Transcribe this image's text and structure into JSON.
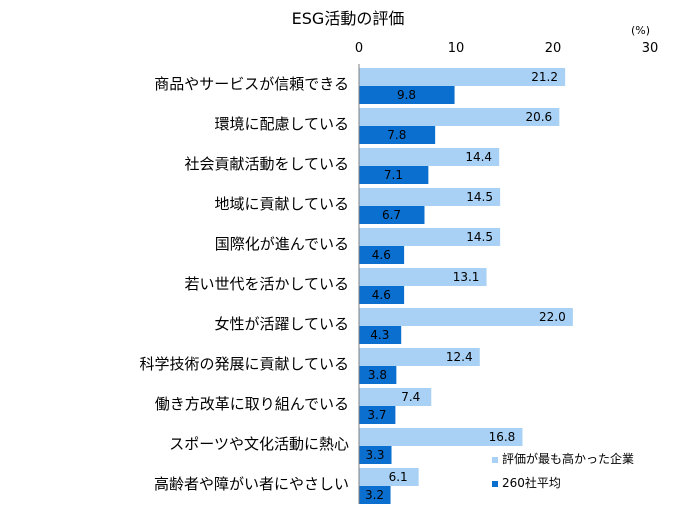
{
  "chart_data": {
    "type": "bar",
    "orientation": "horizontal",
    "title": "ESG活動の評価",
    "unit": "(%)",
    "xlim": [
      0,
      30
    ],
    "ticks": [
      "0",
      "10",
      "20",
      "30"
    ],
    "grid": false,
    "legend_position": "bottom-right",
    "categories": [
      "商品やサービスが信頼できる",
      "環境に配慮している",
      "社会貢献活動をしている",
      "地域に貢献している",
      "国際化が進んでいる",
      "若い世代を活かしている",
      "女性が活躍している",
      "科学技術の発展に貢献している",
      "働き方改革に取り組んでいる",
      "スポーツや文化活動に熱心",
      "高齢者や障がい者にやさしい"
    ],
    "series": [
      {
        "name": "評価が最も高かった企業",
        "color": "#a9d1f5",
        "values": [
          21.2,
          20.6,
          14.4,
          14.5,
          14.5,
          13.1,
          22.0,
          12.4,
          7.4,
          16.8,
          6.1
        ],
        "labels": [
          "21.2",
          "20.6",
          "14.4",
          "14.5",
          "14.5",
          "13.1",
          "22.0",
          "12.4",
          "7.4",
          "16.8",
          "6.1"
        ]
      },
      {
        "name": "260社平均",
        "color": "#0b6fd0",
        "values": [
          9.8,
          7.8,
          7.1,
          6.7,
          4.6,
          4.6,
          4.3,
          3.8,
          3.7,
          3.3,
          3.2
        ],
        "labels": [
          "9.8",
          "7.8",
          "7.1",
          "6.7",
          "4.6",
          "4.6",
          "4.3",
          "3.8",
          "3.7",
          "3.3",
          "3.2"
        ]
      }
    ]
  }
}
